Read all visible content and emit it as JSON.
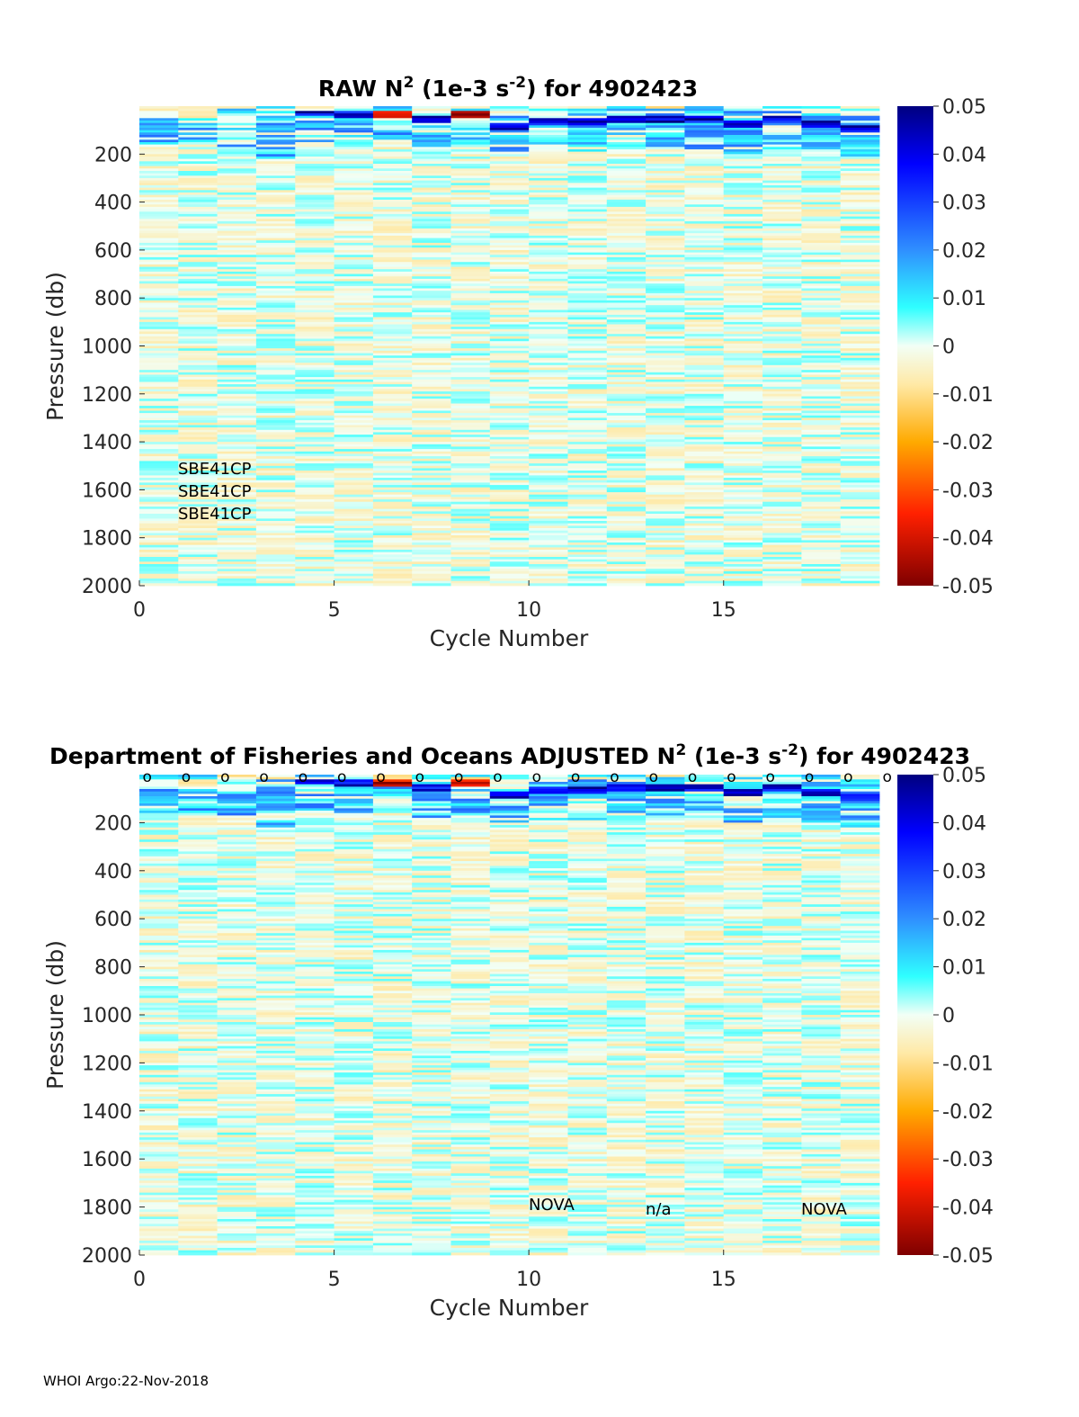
{
  "chart_data": [
    {
      "type": "heatmap",
      "title_pre": "RAW N",
      "title_sup": "2",
      "title_mid": " (1e-3 s",
      "title_sup2": "-2",
      "title_post": ") for 4902423",
      "xlabel": "Cycle Number",
      "ylabel": "Pressure (db)",
      "xlim": [
        0,
        19
      ],
      "ylim": [
        2000,
        0
      ],
      "xticks": [
        "0",
        "5",
        "10",
        "15"
      ],
      "yticks": [
        "200",
        "400",
        "600",
        "800",
        "1000",
        "1200",
        "1400",
        "1600",
        "1800",
        "2000"
      ],
      "clim": [
        -0.05,
        0.05
      ],
      "colorbar_ticks": [
        "0.05",
        "0.04",
        "0.03",
        "0.02",
        "0.01",
        "0",
        "-0.01",
        "-0.02",
        "-0.03",
        "-0.04",
        "-0.05"
      ],
      "annotations": [
        {
          "text": "SBE41CP",
          "cycle": 1,
          "pressure": 1540
        },
        {
          "text": "SBE41CP",
          "cycle": 1,
          "pressure": 1635
        },
        {
          "text": "SBE41CP",
          "cycle": 1,
          "pressure": 1728
        }
      ],
      "mixed_layer_depth_db": [
        40,
        40,
        60,
        100,
        30,
        40,
        40,
        60,
        40,
        90,
        70,
        70,
        60,
        60,
        60,
        80,
        60,
        80,
        100
      ],
      "strong_band_value": [
        0.0,
        -0.01,
        0.0,
        0.02,
        0.05,
        0.05,
        -0.05,
        0.05,
        -0.05,
        0.05,
        0.05,
        0.05,
        0.05,
        0.05,
        0.05,
        0.05,
        0.05,
        0.05,
        0.05
      ]
    },
    {
      "type": "heatmap",
      "title_pre": "Department of Fisheries and Oceans  ADJUSTED N",
      "title_sup": "2",
      "title_mid": " (1e-3 s",
      "title_sup2": "-2",
      "title_post": ") for 4902423",
      "xlabel": "Cycle Number",
      "ylabel": "Pressure (db)",
      "xlim": [
        0,
        19
      ],
      "ylim": [
        2000,
        0
      ],
      "xticks": [
        "0",
        "5",
        "10",
        "15"
      ],
      "yticks": [
        "200",
        "400",
        "600",
        "800",
        "1000",
        "1200",
        "1400",
        "1600",
        "1800",
        "2000"
      ],
      "clim": [
        -0.05,
        0.05
      ],
      "colorbar_ticks": [
        "0.05",
        "0.04",
        "0.03",
        "0.02",
        "0.01",
        "0",
        "-0.01",
        "-0.02",
        "-0.03",
        "-0.04",
        "-0.05"
      ],
      "qc_marker": "o",
      "qc_marker_cycles": [
        0,
        1,
        2,
        3,
        4,
        5,
        6,
        7,
        8,
        9,
        10,
        11,
        12,
        13,
        14,
        15,
        16,
        17,
        18,
        19
      ],
      "annotations": [
        {
          "text": "NOVA",
          "cycle": 10,
          "pressure": 1800
        },
        {
          "text": "n/a",
          "cycle": 13,
          "pressure": 1820
        },
        {
          "text": "NOVA",
          "cycle": 17,
          "pressure": 1820
        }
      ]
    }
  ],
  "footer": "WHOI Argo:22-Nov-2018"
}
